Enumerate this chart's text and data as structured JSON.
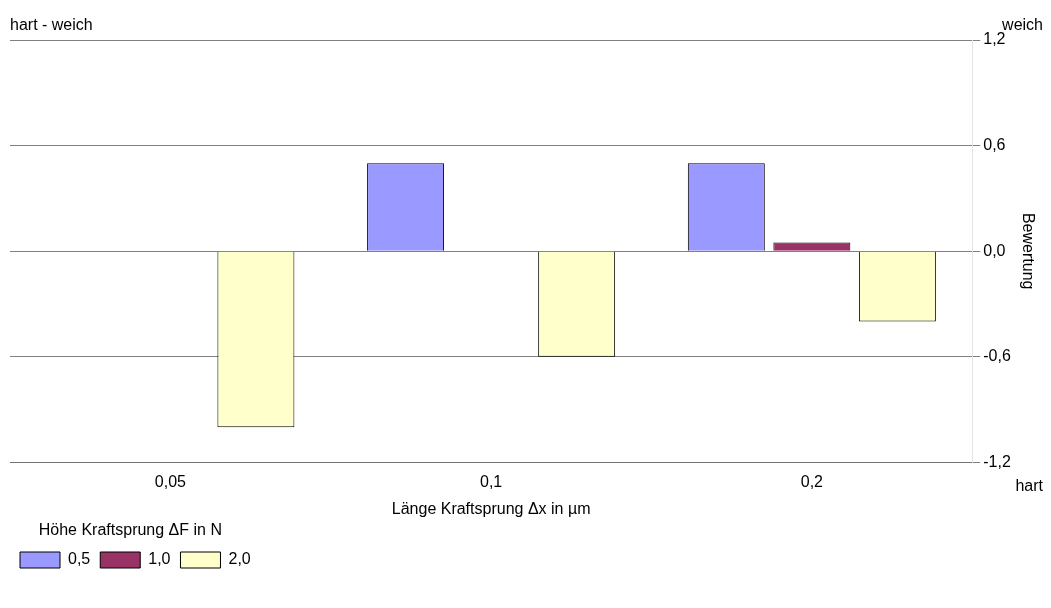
{
  "chart_data": {
    "type": "bar",
    "categories": [
      "0,05",
      "0,1",
      "0,2"
    ],
    "xlabel": "Länge Kraftsprung Δx in µm",
    "ylabel": "Bewertung",
    "legend_title": "Höhe Kraftsprung ΔF in N",
    "legend": "bottom left",
    "grid": "y",
    "ylim": [
      -1.2,
      1.2
    ],
    "yticks": [
      {
        "value": -1.2,
        "label": "-1,2"
      },
      {
        "value": -0.6,
        "label": "-0,6"
      },
      {
        "value": 0,
        "label": "0,0"
      },
      {
        "value": 0.6,
        "label": "0,6"
      },
      {
        "value": 1.2,
        "label": "1,2"
      }
    ],
    "series": [
      {
        "name": "0,5",
        "colors": [
          "#000000",
          "#9999ff",
          "#9999ff"
        ],
        "values": [
          0,
          0.5,
          0.5
        ]
      },
      {
        "name": "1,0",
        "colors": [
          "#000000",
          "#000000",
          "#993366"
        ],
        "values": [
          0,
          0,
          0.05
        ]
      },
      {
        "name": "2,0",
        "colors": [
          "#ffffcc",
          "#ffffcc",
          "#ffffcc"
        ],
        "values": [
          -1.0,
          -0.6,
          -0.4
        ]
      }
    ],
    "annotations": [
      "hart - weich",
      "weich",
      "hart"
    ]
  }
}
